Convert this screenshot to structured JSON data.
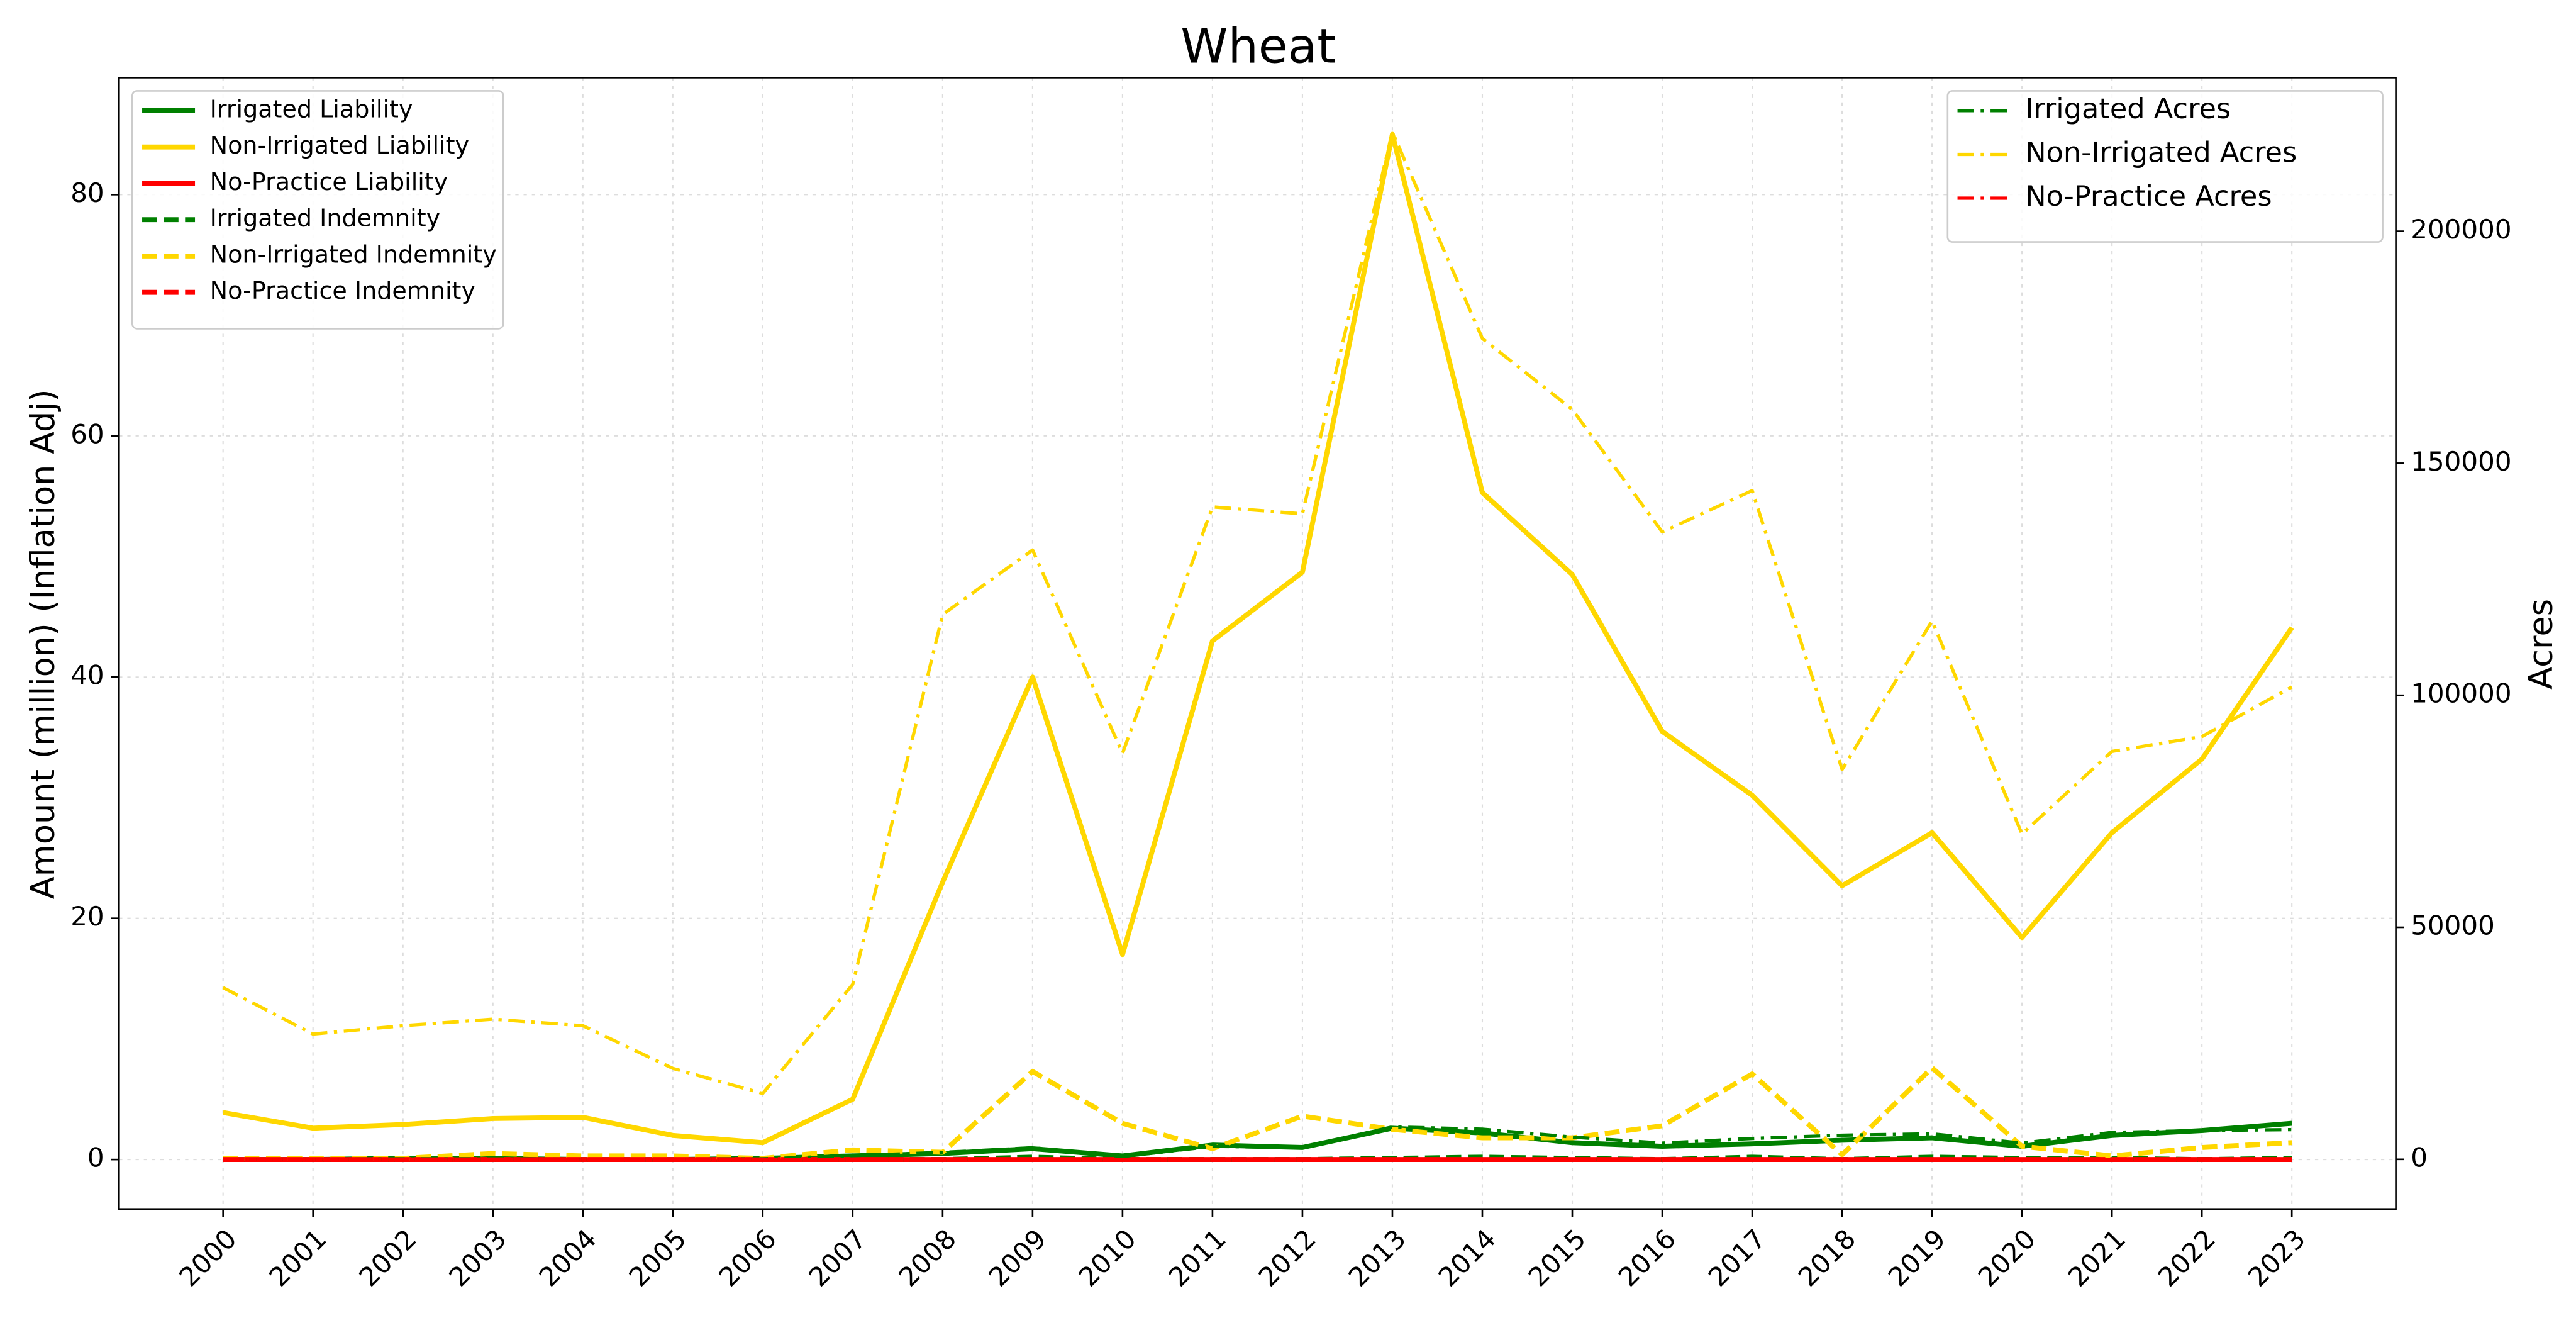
{
  "chart_data": {
    "type": "line",
    "title": "Wheat",
    "y_label": "Amount (million) (Inflation Adj)",
    "y2_label": "Acres",
    "categories": [
      "2000",
      "2001",
      "2002",
      "2003",
      "2004",
      "2005",
      "2006",
      "2007",
      "2008",
      "2009",
      "2010",
      "2011",
      "2012",
      "2013",
      "2014",
      "2015",
      "2016",
      "2017",
      "2018",
      "2019",
      "2020",
      "2021",
      "2022",
      "2023"
    ],
    "ylim": [
      -4.1,
      89.7
    ],
    "yticks": [
      0,
      20,
      40,
      60,
      80
    ],
    "y2lim": [
      -10700,
      233100
    ],
    "y2ticks": [
      0,
      50000,
      100000,
      150000,
      200000
    ],
    "grid": true,
    "legend": "upper left",
    "legend2": "upper right",
    "series": [
      {
        "name": "Irrigated Liability",
        "color": "#008000",
        "style": "solid",
        "axis": "y",
        "values": [
          0,
          0,
          0.1,
          0.1,
          0,
          0,
          0.1,
          0.3,
          0.5,
          0.9,
          0.3,
          1.2,
          1.0,
          2.6,
          2.2,
          1.4,
          1.1,
          1.3,
          1.6,
          1.8,
          1.1,
          2.0,
          2.4,
          3.0
        ]
      },
      {
        "name": "Non-Irrigated Liability",
        "color": "#ffd700",
        "style": "solid",
        "axis": "y",
        "values": [
          3.9,
          2.6,
          2.9,
          3.4,
          3.5,
          2.0,
          1.4,
          5.0,
          23,
          40,
          17,
          43,
          48.7,
          85,
          55.3,
          48.5,
          35.5,
          30.2,
          22.7,
          27.1,
          18.4,
          27.1,
          33.2,
          44.1
        ]
      },
      {
        "name": "No-Practice Liability",
        "color": "#ff0000",
        "style": "solid",
        "axis": "y",
        "values": [
          0,
          0,
          0,
          0,
          0,
          0,
          0,
          0,
          0,
          0,
          0,
          0,
          0,
          0,
          0,
          0,
          0,
          0,
          0,
          0,
          0,
          0,
          0,
          0
        ]
      },
      {
        "name": "Irrigated Indemnity",
        "color": "#008000",
        "style": "dashed",
        "axis": "y",
        "values": [
          0,
          0,
          0,
          0,
          0,
          0,
          0,
          0,
          0,
          0.2,
          0,
          0,
          0,
          0.1,
          0.2,
          0.1,
          0,
          0.2,
          0,
          0.2,
          0.1,
          0.1,
          0,
          0.1
        ]
      },
      {
        "name": "Non-Irrigated Indemnity",
        "color": "#ffd700",
        "style": "dashed",
        "axis": "y",
        "values": [
          0.1,
          0.1,
          0.1,
          0.5,
          0.3,
          0.3,
          0.1,
          0.8,
          0.6,
          7.3,
          3.0,
          0.9,
          3.6,
          2.5,
          1.8,
          1.8,
          2.8,
          7.1,
          0.4,
          7.6,
          1.1,
          0.3,
          1.0,
          1.4
        ]
      },
      {
        "name": "No-Practice Indemnity",
        "color": "#ff0000",
        "style": "dashed",
        "axis": "y",
        "values": [
          0,
          0,
          0,
          0,
          0,
          0,
          0,
          0,
          0,
          0,
          0,
          0,
          0,
          0,
          0,
          0,
          0,
          0,
          0,
          0,
          0,
          0,
          0,
          0
        ]
      },
      {
        "name": "Irrigated Acres",
        "color": "#008000",
        "style": "dashdot",
        "axis": "y2",
        "values": [
          0,
          0,
          100,
          100,
          0,
          0,
          100,
          800,
          1500,
          2500,
          600,
          2800,
          2500,
          7000,
          6500,
          4800,
          3500,
          4500,
          5200,
          5500,
          3500,
          5800,
          6200,
          6400
        ]
      },
      {
        "name": "Non-Irrigated Acres",
        "color": "#ffd700",
        "style": "dashdot",
        "axis": "y2",
        "values": [
          37000,
          27000,
          28800,
          30200,
          28800,
          19600,
          14200,
          37700,
          117400,
          131300,
          87500,
          140600,
          139100,
          221400,
          176900,
          161600,
          135200,
          144100,
          84000,
          116000,
          70100,
          87900,
          91100,
          101800
        ]
      },
      {
        "name": "No-Practice Acres",
        "color": "#ff0000",
        "style": "dashdot",
        "axis": "y2",
        "values": [
          0,
          0,
          0,
          0,
          0,
          0,
          0,
          0,
          0,
          0,
          0,
          0,
          0,
          0,
          0,
          0,
          0,
          0,
          0,
          0,
          0,
          0,
          0,
          0
        ]
      }
    ]
  }
}
